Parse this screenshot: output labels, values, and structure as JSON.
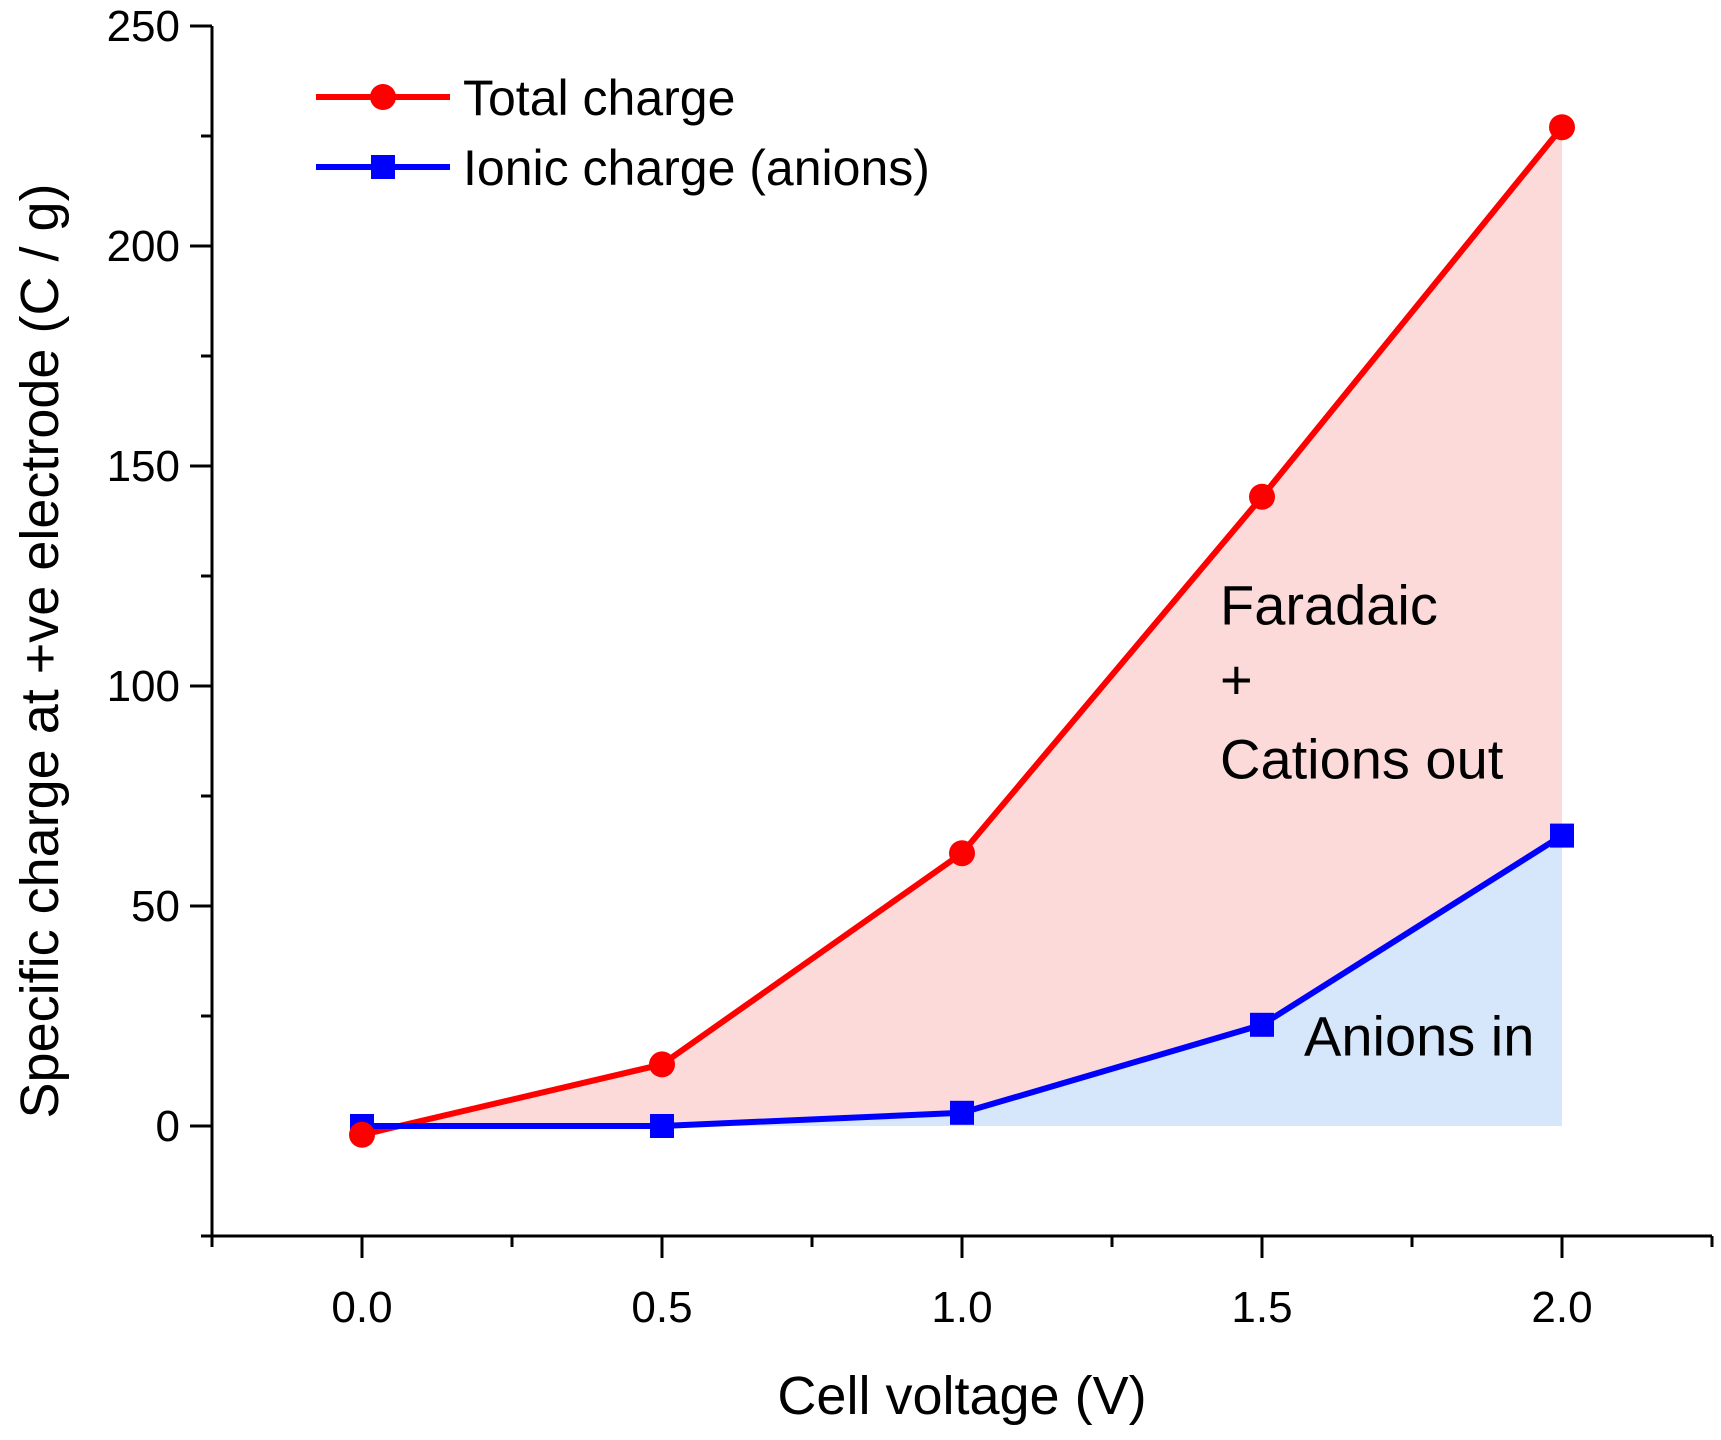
{
  "chart_data": {
    "type": "line",
    "xlabel": "Cell voltage (V)",
    "ylabel": "Specific charge at +ve electrode (C / g)",
    "xlim": [
      -0.25,
      2.25
    ],
    "ylim": [
      -25,
      250
    ],
    "x_ticks": [
      0.0,
      0.5,
      1.0,
      1.5,
      2.0
    ],
    "x_tick_labels": [
      "0.0",
      "0.5",
      "1.0",
      "1.5",
      "2.0"
    ],
    "y_ticks": [
      0,
      50,
      100,
      150,
      200,
      250
    ],
    "y_tick_labels": [
      "0",
      "50",
      "100",
      "150",
      "200",
      "250"
    ],
    "x": [
      0.0,
      0.5,
      1.0,
      1.5,
      2.0
    ],
    "series": [
      {
        "name": "Total charge",
        "marker": "circle",
        "color": "#ff0000",
        "fill_color": "#fcdada",
        "values": [
          -2,
          14,
          62,
          143,
          227
        ]
      },
      {
        "name": "Ionic charge (anions)",
        "marker": "square",
        "color": "#0000ff",
        "fill_color": "#d6e6fb",
        "values": [
          0,
          0,
          3,
          23,
          66
        ]
      }
    ],
    "annotations": [
      {
        "text": "Faradaic",
        "x": 1.43,
        "y": 114
      },
      {
        "text": "+",
        "x": 1.43,
        "y": 97
      },
      {
        "text": "Cations out",
        "x": 1.43,
        "y": 79
      },
      {
        "text": "Anions in",
        "x": 1.57,
        "y": 16
      }
    ],
    "legend_position": "top-left",
    "grid": false
  }
}
